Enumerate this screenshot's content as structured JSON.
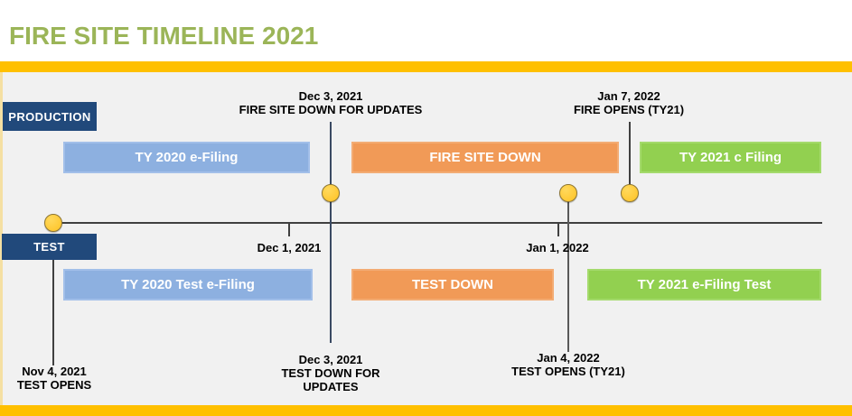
{
  "title": "FIRE SITE TIMELINE 2021",
  "lanes": {
    "production": {
      "label": "PRODUCTION",
      "bars": [
        {
          "label": "TY 2020 e-Filing",
          "color": "#8DB0E0"
        },
        {
          "label": "FIRE SITE DOWN",
          "color": "#F19A57"
        },
        {
          "label": "TY 2021 c Filing",
          "color": "#92D050"
        }
      ]
    },
    "test": {
      "label": "TEST",
      "bars": [
        {
          "label": "TY 2020 Test e-Filing",
          "color": "#8DB0E0"
        },
        {
          "label": "TEST DOWN",
          "color": "#F19A57"
        },
        {
          "label": "TY 2021 e-Filing Test",
          "color": "#92D050"
        }
      ]
    }
  },
  "axis": {
    "tick_dec1": "Dec 1, 2021",
    "tick_jan1": "Jan 1, 2022"
  },
  "annotations": {
    "fire_down": {
      "line1": "Dec 3, 2021",
      "line2": "FIRE SITE DOWN FOR UPDATES"
    },
    "fire_opens": {
      "line1": "Jan 7, 2022",
      "line2": "FIRE OPENS (TY21)"
    },
    "test_opens": {
      "line1": "Nov 4, 2021",
      "line2": "TEST OPENS"
    },
    "test_down": {
      "line1": "Dec 3, 2021",
      "line2": "TEST DOWN FOR",
      "line3": "UPDATES"
    },
    "test_opens_ty21": {
      "line1": "Jan 4, 2022",
      "line2": "TEST OPENS (TY21)"
    }
  },
  "colors": {
    "title_text": "#9BB558",
    "accent_bar": "#FFC000",
    "lane_label_bg": "#21497B",
    "panel_bg": "#F1F1F1",
    "milestone_fill": "#FFC72C",
    "bar_blue": "#8DB0E0",
    "bar_orange": "#F19A57",
    "bar_green": "#92D050",
    "timeline_line": "#404040"
  }
}
